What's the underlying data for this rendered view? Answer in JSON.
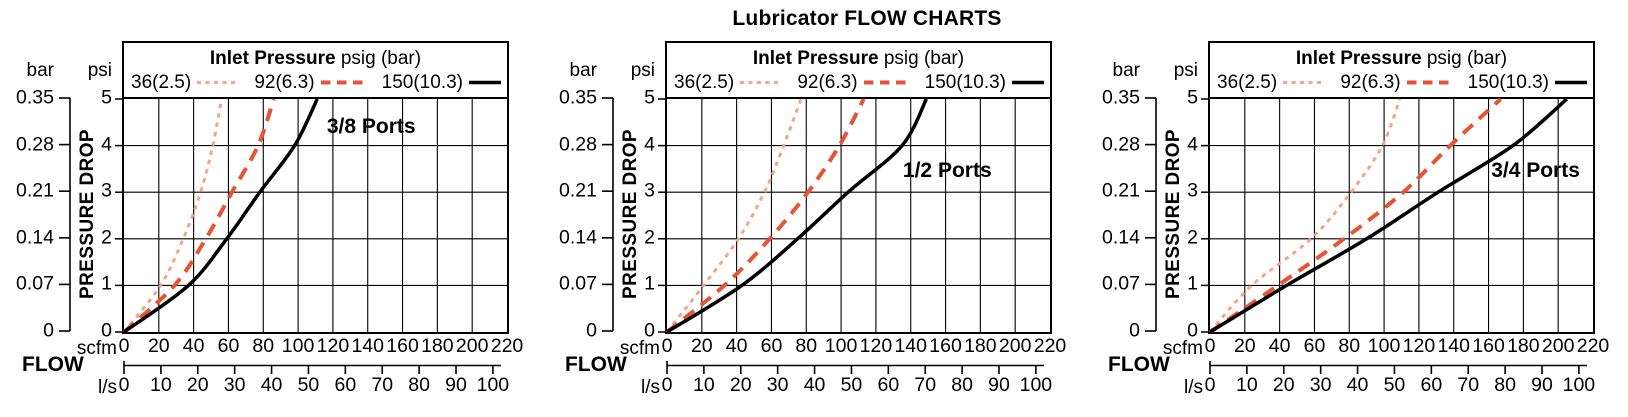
{
  "title": "Lubricator FLOW CHARTS",
  "legend": {
    "heading_bold": "Inlet Pressure",
    "heading_rest": " psig (bar)",
    "entries": [
      {
        "label": "36(2.5)",
        "color": "#f3a68e",
        "style": "dotted"
      },
      {
        "label": "92(6.3)",
        "color": "#e65434",
        "style": "dashed"
      },
      {
        "label": "150(10.3)",
        "color": "#000000",
        "style": "solid"
      }
    ]
  },
  "axes": {
    "y_bar": {
      "unit": "bar",
      "ticks": [
        "0.35",
        "0.28",
        "0.21",
        "0.14",
        "0.07",
        "0"
      ]
    },
    "y_psi": {
      "unit": "psi",
      "ticks": [
        "5",
        "4",
        "3",
        "2",
        "1",
        "0"
      ],
      "axis_label": "PRESSURE DROP"
    },
    "x_scfm": {
      "unit": "scfm",
      "ticks": [
        "0",
        "20",
        "40",
        "60",
        "80",
        "100",
        "120",
        "140",
        "160",
        "180",
        "200",
        "220"
      ],
      "max": 220
    },
    "x_lps": {
      "unit": "l/s",
      "ticks": [
        "0",
        "10",
        "20",
        "30",
        "40",
        "50",
        "60",
        "70",
        "80",
        "90",
        "100"
      ],
      "max": 100,
      "scfm_per_lps": 2.119
    },
    "x_label": "FLOW"
  },
  "chart_data": [
    {
      "type": "line",
      "label": "3/8 Ports",
      "title": "3/8 Ports pressure drop vs flow",
      "xlabel": "FLOW scfm / l/s",
      "ylabel": "PRESSURE DROP psi / bar",
      "xlim": [
        0,
        220
      ],
      "ylim": [
        0,
        5
      ],
      "grid": true,
      "label_pos": {
        "x": 142,
        "y": 4.4
      },
      "series": [
        {
          "name": "36(2.5)",
          "x": [
            0,
            21,
            34,
            44,
            51,
            56
          ],
          "y": [
            0,
            1,
            2,
            3,
            4,
            5
          ]
        },
        {
          "name": "92(6.3)",
          "x": [
            0,
            29,
            47,
            62,
            77,
            86
          ],
          "y": [
            0,
            1,
            2,
            3,
            4,
            5
          ]
        },
        {
          "name": "150(10.3)",
          "x": [
            0,
            37,
            59,
            78,
            98,
            111
          ],
          "y": [
            0,
            1,
            2,
            3,
            4,
            5
          ]
        }
      ]
    },
    {
      "type": "line",
      "label": "1/2 Ports",
      "title": "1/2 Ports pressure drop vs flow",
      "xlabel": "FLOW scfm / l/s",
      "ylabel": "PRESSURE DROP psi / bar",
      "xlim": [
        0,
        220
      ],
      "ylim": [
        0,
        5
      ],
      "grid": true,
      "label_pos": {
        "x": 161,
        "y": 3.45
      },
      "series": [
        {
          "name": "36(2.5)",
          "x": [
            0,
            21,
            41,
            56,
            67,
            77
          ],
          "y": [
            0,
            1,
            2,
            3,
            4,
            5
          ]
        },
        {
          "name": "92(6.3)",
          "x": [
            0,
            33,
            59,
            81,
            99,
            113
          ],
          "y": [
            0,
            1,
            2,
            3,
            4,
            5
          ]
        },
        {
          "name": "150(10.3)",
          "x": [
            0,
            43,
            75,
            104,
            135,
            149
          ],
          "y": [
            0,
            1,
            2,
            3,
            4,
            5
          ]
        }
      ]
    },
    {
      "type": "line",
      "label": "3/4 Ports",
      "title": "3/4 Ports pressure drop vs flow",
      "xlabel": "FLOW scfm / l/s",
      "ylabel": "PRESSURE DROP psi / bar",
      "xlim": [
        0,
        220
      ],
      "ylim": [
        0,
        5
      ],
      "grid": true,
      "label_pos": {
        "x": 187,
        "y": 3.45
      },
      "series": [
        {
          "name": "36(2.5)",
          "x": [
            0,
            24,
            58,
            81,
            99,
            109
          ],
          "y": [
            0,
            1,
            2,
            3,
            4,
            5
          ]
        },
        {
          "name": "92(6.3)",
          "x": [
            0,
            39,
            77,
            111,
            138,
            167
          ],
          "y": [
            0,
            1,
            2,
            3,
            4,
            5
          ]
        },
        {
          "name": "150(10.3)",
          "x": [
            0,
            44,
            90,
            131,
            174,
            205
          ],
          "y": [
            0,
            1,
            2,
            3,
            4,
            5
          ]
        }
      ]
    }
  ]
}
